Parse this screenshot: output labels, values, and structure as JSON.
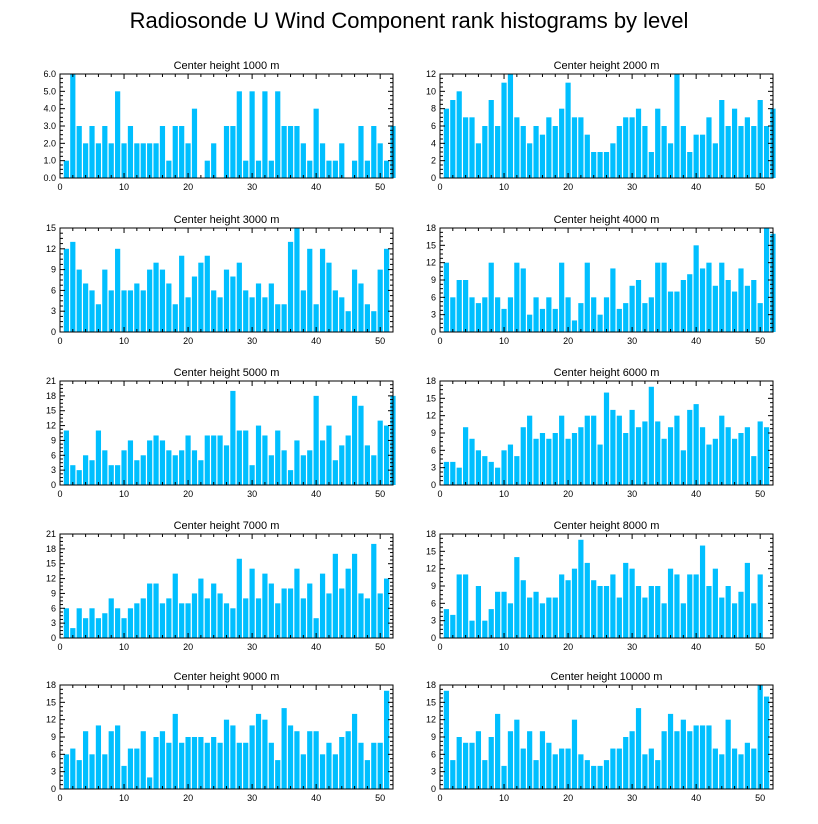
{
  "title": "Radiosonde U Wind Component rank histograms by level",
  "bar_color": "#00BFFF",
  "chart_data": [
    {
      "type": "bar",
      "title": "Center height 1000 m",
      "xlabel": "",
      "ylabel": "",
      "xlim": [
        0,
        52
      ],
      "ylim": [
        0,
        6
      ],
      "yticks": [
        "0.0",
        "1.0",
        "2.0",
        "3.0",
        "4.0",
        "5.0",
        "6.0"
      ],
      "xticks": [
        "0",
        "10",
        "20",
        "30",
        "40",
        "50"
      ],
      "values": [
        1,
        6,
        3,
        2,
        3,
        2,
        3,
        2,
        5,
        2,
        3,
        2,
        2,
        2,
        2,
        3,
        1,
        3,
        3,
        2,
        4,
        0,
        1,
        2,
        0,
        3,
        3,
        5,
        1,
        5,
        1,
        5,
        1,
        5,
        3,
        3,
        3,
        2,
        1,
        4,
        2,
        1,
        1,
        2,
        0,
        1,
        3,
        1,
        3,
        2,
        1,
        3
      ]
    },
    {
      "type": "bar",
      "title": "Center height 2000 m",
      "xlabel": "",
      "ylabel": "",
      "xlim": [
        0,
        52
      ],
      "ylim": [
        0,
        12
      ],
      "yticks": [
        "0",
        "2",
        "4",
        "6",
        "8",
        "10",
        "12"
      ],
      "xticks": [
        "0",
        "10",
        "20",
        "30",
        "40",
        "50"
      ],
      "values": [
        8,
        9,
        10,
        7,
        7,
        4,
        6,
        9,
        6,
        11,
        12,
        7,
        6,
        4,
        6,
        5,
        7,
        6,
        8,
        11,
        7,
        7,
        5,
        3,
        3,
        3,
        4,
        6,
        7,
        7,
        8,
        6,
        3,
        8,
        6,
        4,
        12,
        6,
        3,
        5,
        5,
        7,
        4,
        9,
        6,
        8,
        6,
        7,
        6,
        9,
        6,
        8
      ]
    },
    {
      "type": "bar",
      "title": "Center height 3000 m",
      "xlabel": "",
      "ylabel": "",
      "xlim": [
        0,
        52
      ],
      "ylim": [
        0,
        15
      ],
      "yticks": [
        "0",
        "3",
        "6",
        "9",
        "12",
        "15"
      ],
      "xticks": [
        "0",
        "10",
        "20",
        "30",
        "40",
        "50"
      ],
      "values": [
        12,
        13,
        9,
        7,
        6,
        4,
        9,
        6,
        12,
        6,
        6,
        7,
        6,
        9,
        10,
        9,
        7,
        4,
        11,
        5,
        8,
        10,
        11,
        6,
        5,
        9,
        8,
        10,
        6,
        5,
        7,
        5,
        7,
        4,
        4,
        13,
        15,
        6,
        12,
        4,
        12,
        10,
        6,
        5,
        3,
        9,
        7,
        4,
        3,
        9,
        12
      ]
    },
    {
      "type": "bar",
      "title": "Center height 4000 m",
      "xlabel": "",
      "ylabel": "",
      "xlim": [
        0,
        52
      ],
      "ylim": [
        0,
        18
      ],
      "yticks": [
        "0",
        "3",
        "6",
        "9",
        "12",
        "15",
        "18"
      ],
      "xticks": [
        "0",
        "10",
        "20",
        "30",
        "40",
        "50"
      ],
      "values": [
        12,
        6,
        9,
        9,
        6,
        5,
        6,
        12,
        6,
        4,
        6,
        12,
        11,
        3,
        6,
        4,
        6,
        4,
        12,
        6,
        2,
        5,
        12,
        6,
        3,
        6,
        11,
        4,
        5,
        8,
        9,
        5,
        6,
        12,
        12,
        7,
        7,
        9,
        10,
        15,
        11,
        12,
        8,
        12,
        9,
        7,
        11,
        8,
        9,
        5,
        18,
        17
      ]
    },
    {
      "type": "bar",
      "title": "Center height 5000 m",
      "xlabel": "",
      "ylabel": "",
      "xlim": [
        0,
        52
      ],
      "ylim": [
        0,
        21
      ],
      "yticks": [
        "0",
        "3",
        "6",
        "9",
        "12",
        "15",
        "18",
        "21"
      ],
      "xticks": [
        "0",
        "10",
        "20",
        "30",
        "40",
        "50"
      ],
      "values": [
        11,
        4,
        3,
        6,
        5,
        11,
        7,
        4,
        4,
        7,
        9,
        5,
        6,
        9,
        10,
        9,
        7,
        6,
        7,
        10,
        7,
        5,
        10,
        10,
        10,
        8,
        19,
        11,
        11,
        4,
        12,
        10,
        6,
        11,
        7,
        3,
        9,
        6,
        7,
        18,
        9,
        12,
        5,
        8,
        10,
        18,
        16,
        8,
        6,
        13,
        12,
        18
      ]
    },
    {
      "type": "bar",
      "title": "Center height 6000 m",
      "xlabel": "",
      "ylabel": "",
      "xlim": [
        0,
        52
      ],
      "ylim": [
        0,
        18
      ],
      "yticks": [
        "0",
        "3",
        "6",
        "9",
        "12",
        "15",
        "18"
      ],
      "xticks": [
        "0",
        "10",
        "20",
        "30",
        "40",
        "50"
      ],
      "values": [
        4,
        4,
        3,
        10,
        8,
        6,
        5,
        4,
        3,
        6,
        7,
        5,
        10,
        12,
        8,
        9,
        8,
        9,
        12,
        8,
        9,
        10,
        12,
        12,
        7,
        16,
        13,
        12,
        9,
        13,
        10,
        11,
        17,
        11,
        8,
        10,
        12,
        6,
        13,
        14,
        10,
        7,
        8,
        12,
        10,
        8,
        9,
        10,
        5,
        11,
        10
      ]
    },
    {
      "type": "bar",
      "title": "Center height 7000 m",
      "xlabel": "",
      "ylabel": "",
      "xlim": [
        0,
        52
      ],
      "ylim": [
        0,
        21
      ],
      "yticks": [
        "0",
        "3",
        "6",
        "9",
        "12",
        "15",
        "18",
        "21"
      ],
      "xticks": [
        "0",
        "10",
        "20",
        "30",
        "40",
        "50"
      ],
      "values": [
        6,
        2,
        6,
        4,
        6,
        4,
        5,
        8,
        6,
        4,
        6,
        7,
        8,
        11,
        11,
        7,
        8,
        13,
        7,
        7,
        9,
        12,
        8,
        11,
        9,
        7,
        6,
        16,
        8,
        14,
        8,
        13,
        11,
        7,
        10,
        10,
        14,
        8,
        11,
        4,
        13,
        9,
        17,
        10,
        14,
        17,
        9,
        8,
        19,
        9,
        12
      ]
    },
    {
      "type": "bar",
      "title": "Center height 8000 m",
      "xlabel": "",
      "ylabel": "",
      "xlim": [
        0,
        52
      ],
      "ylim": [
        0,
        18
      ],
      "yticks": [
        "0",
        "3",
        "6",
        "9",
        "12",
        "15",
        "18"
      ],
      "xticks": [
        "0",
        "10",
        "20",
        "30",
        "40",
        "50"
      ],
      "values": [
        5,
        4,
        11,
        11,
        3,
        9,
        3,
        5,
        8,
        8,
        6,
        14,
        10,
        7,
        8,
        6,
        7,
        7,
        11,
        10,
        12,
        17,
        13,
        10,
        9,
        9,
        11,
        7,
        13,
        12,
        9,
        7,
        9,
        9,
        6,
        12,
        11,
        6,
        11,
        11,
        16,
        9,
        12,
        7,
        9,
        6,
        8,
        13,
        6,
        11
      ]
    },
    {
      "type": "bar",
      "title": "Center height 9000 m",
      "xlabel": "",
      "ylabel": "",
      "xlim": [
        0,
        52
      ],
      "ylim": [
        0,
        18
      ],
      "yticks": [
        "0",
        "3",
        "6",
        "9",
        "12",
        "15",
        "18"
      ],
      "xticks": [
        "0",
        "10",
        "20",
        "30",
        "40",
        "50"
      ],
      "values": [
        6,
        7,
        5,
        10,
        6,
        11,
        6,
        10,
        11,
        4,
        7,
        7,
        10,
        2,
        9,
        10,
        8,
        13,
        8,
        9,
        9,
        9,
        8,
        9,
        8,
        12,
        11,
        8,
        8,
        11,
        13,
        12,
        8,
        5,
        14,
        11,
        10,
        6,
        10,
        10,
        6,
        8,
        6,
        9,
        10,
        13,
        8,
        5,
        8,
        8,
        17
      ]
    },
    {
      "type": "bar",
      "title": "Center height 10000 m",
      "xlabel": "",
      "ylabel": "",
      "xlim": [
        0,
        52
      ],
      "ylim": [
        0,
        18
      ],
      "yticks": [
        "0",
        "3",
        "6",
        "9",
        "12",
        "15",
        "18"
      ],
      "xticks": [
        "0",
        "10",
        "20",
        "30",
        "40",
        "50"
      ],
      "values": [
        17,
        5,
        9,
        8,
        8,
        10,
        5,
        9,
        13,
        4,
        10,
        12,
        7,
        10,
        5,
        10,
        8,
        6,
        7,
        7,
        12,
        6,
        5,
        4,
        4,
        5,
        7,
        7,
        9,
        10,
        14,
        6,
        7,
        5,
        10,
        13,
        10,
        12,
        10,
        11,
        11,
        11,
        7,
        6,
        12,
        7,
        6,
        8,
        7,
        18,
        16
      ]
    }
  ]
}
